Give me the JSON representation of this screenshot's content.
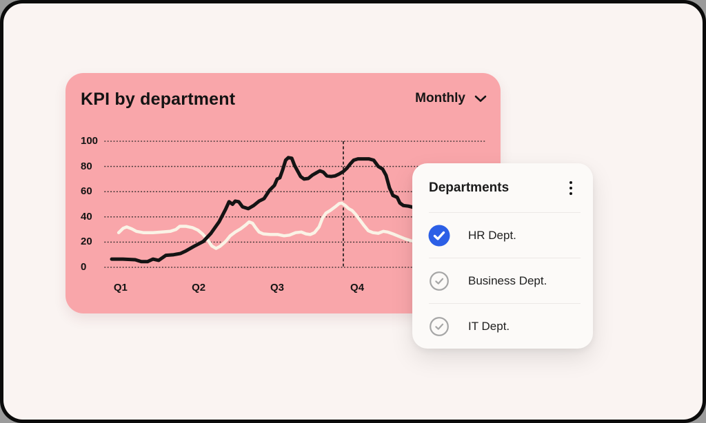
{
  "window": {
    "outside_color": "#9B9B9B",
    "frame_color": "#0B0B0B",
    "surface_color": "#FAF4F2"
  },
  "card": {
    "background": "#F9A6AA",
    "title": "KPI by department",
    "period_selector": {
      "label": "Monthly",
      "icon": "chevron-down"
    }
  },
  "popover": {
    "title": "Departments",
    "menu_icon": "kebab-vertical",
    "background": "#FCFAF8",
    "checkbox_colors": {
      "checked_fill": "#2C5FE6",
      "checked_check": "#FFFFFF",
      "unchecked_stroke": "#A6A6A6"
    },
    "items": [
      {
        "label": "HR Dept.",
        "checked": true
      },
      {
        "label": "Business Dept.",
        "checked": false
      },
      {
        "label": "IT Dept.",
        "checked": false
      }
    ]
  },
  "chart_data": {
    "type": "line",
    "title": "KPI by department",
    "y_axis": {
      "ticks": [
        0,
        20,
        40,
        60,
        80,
        100
      ],
      "range": [
        0,
        100
      ]
    },
    "x_axis": {
      "labels": [
        "Q1",
        "Q2",
        "Q3",
        "Q4"
      ],
      "label_positions_percent": [
        4.1,
        24.4,
        44.8,
        65.6
      ]
    },
    "grid": {
      "style": "dotted-horizontal",
      "right_extent_percent": 98.7
    },
    "marker_line": {
      "style": "dashed-vertical",
      "x_percent": 62
    },
    "legend": "none",
    "series": [
      {
        "id": "cream-line",
        "color": "#FAF3E6",
        "width": 4.5,
        "points": [
          [
            3.6,
            27.5
          ],
          [
            4.8,
            31
          ],
          [
            5.7,
            32
          ],
          [
            7,
            30.5
          ],
          [
            8.2,
            28.5
          ],
          [
            10,
            27.5
          ],
          [
            12.5,
            27.5
          ],
          [
            14.9,
            28
          ],
          [
            17,
            28.5
          ],
          [
            18.5,
            30
          ],
          [
            19.5,
            32.5
          ],
          [
            21.1,
            32.5
          ],
          [
            22.8,
            31.5
          ],
          [
            24.2,
            29.5
          ],
          [
            25.4,
            26.5
          ],
          [
            26.7,
            22
          ],
          [
            27.8,
            17
          ],
          [
            28.9,
            15
          ],
          [
            29.9,
            16.5
          ],
          [
            31.4,
            20.5
          ],
          [
            32.6,
            25
          ],
          [
            33.9,
            28
          ],
          [
            35.3,
            30.5
          ],
          [
            36.6,
            33.5
          ],
          [
            37.5,
            36
          ],
          [
            38.4,
            35
          ],
          [
            39.2,
            31.5
          ],
          [
            40.1,
            28
          ],
          [
            41.2,
            26.5
          ],
          [
            43,
            26
          ],
          [
            45,
            26
          ],
          [
            46.6,
            25
          ],
          [
            48,
            25.5
          ],
          [
            49.6,
            27.5
          ],
          [
            51.1,
            28
          ],
          [
            52.3,
            26.5
          ],
          [
            53.4,
            26
          ],
          [
            54.5,
            27.5
          ],
          [
            55.7,
            32
          ],
          [
            56.6,
            39
          ],
          [
            57.5,
            43
          ],
          [
            58.6,
            45
          ],
          [
            59.9,
            48
          ],
          [
            60.9,
            50.5
          ],
          [
            61.6,
            51
          ],
          [
            62.5,
            49
          ],
          [
            63.4,
            46.5
          ],
          [
            64.3,
            45
          ],
          [
            65.2,
            42
          ],
          [
            66.3,
            37.5
          ],
          [
            67.4,
            33
          ],
          [
            68.5,
            29
          ],
          [
            69.7,
            27.5
          ],
          [
            71.1,
            27
          ],
          [
            72.4,
            28.5
          ],
          [
            73.5,
            28
          ],
          [
            74.9,
            26.5
          ],
          [
            76.5,
            24.5
          ],
          [
            78.1,
            22.5
          ],
          [
            79.7,
            21
          ],
          [
            81.7,
            19.5
          ]
        ]
      },
      {
        "id": "dark-line",
        "color": "#141414",
        "width": 5,
        "points": [
          [
            1.8,
            6.5
          ],
          [
            4.7,
            6.5
          ],
          [
            7.9,
            6
          ],
          [
            9.5,
            4.5
          ],
          [
            11.1,
            4.5
          ],
          [
            12.5,
            6.5
          ],
          [
            14,
            5.5
          ],
          [
            15.9,
            9.5
          ],
          [
            17.9,
            10
          ],
          [
            19.7,
            11
          ],
          [
            21.1,
            13
          ],
          [
            23.1,
            16.5
          ],
          [
            25.6,
            20.5
          ],
          [
            27.6,
            27
          ],
          [
            29.7,
            36
          ],
          [
            31.4,
            46
          ],
          [
            32.3,
            52
          ],
          [
            33.2,
            50
          ],
          [
            33.9,
            52.5
          ],
          [
            34.8,
            52
          ],
          [
            35.8,
            48
          ],
          [
            37.3,
            46.5
          ],
          [
            38.7,
            49
          ],
          [
            40.1,
            52.5
          ],
          [
            41.4,
            54.5
          ],
          [
            42.8,
            61
          ],
          [
            44.1,
            65
          ],
          [
            44.8,
            70
          ],
          [
            45.5,
            71
          ],
          [
            46.2,
            77
          ],
          [
            47,
            85
          ],
          [
            47.7,
            87
          ],
          [
            48.6,
            86.5
          ],
          [
            49.3,
            81
          ],
          [
            50,
            77
          ],
          [
            50.9,
            72
          ],
          [
            51.8,
            70
          ],
          [
            52.9,
            70.5
          ],
          [
            53.9,
            73
          ],
          [
            55,
            75
          ],
          [
            55.9,
            76.5
          ],
          [
            56.8,
            75.5
          ],
          [
            57.7,
            72.5
          ],
          [
            58.8,
            72
          ],
          [
            59.9,
            72.5
          ],
          [
            60.9,
            74
          ],
          [
            62,
            76
          ],
          [
            62.9,
            78.5
          ],
          [
            63.8,
            82
          ],
          [
            64.7,
            85
          ],
          [
            65.8,
            86
          ],
          [
            67.2,
            86
          ],
          [
            68.6,
            86
          ],
          [
            69.9,
            85
          ],
          [
            71.1,
            80
          ],
          [
            72.2,
            78
          ],
          [
            73.1,
            73
          ],
          [
            74,
            63
          ],
          [
            74.9,
            57
          ],
          [
            76,
            55.5
          ],
          [
            76.7,
            51
          ],
          [
            77.6,
            49
          ],
          [
            78.9,
            48.5
          ],
          [
            80.3,
            47.5
          ],
          [
            82.4,
            47.5
          ]
        ]
      }
    ]
  }
}
